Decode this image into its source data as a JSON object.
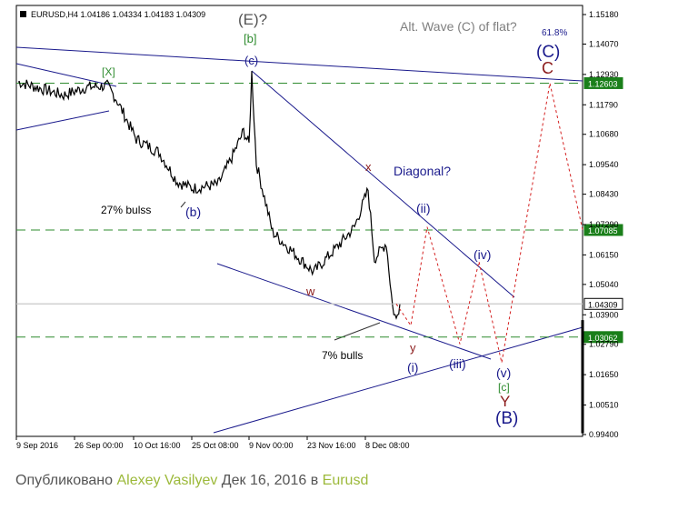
{
  "chart_data": {
    "type": "line",
    "title": "EURUSD,H4  1.04186 1.04334 1.04183 1.04309",
    "subtitle": "Alt. Wave (C) of flat?",
    "y_ticks": [
      "1.15180",
      "1.14070",
      "1.12930",
      "1.11790",
      "1.10680",
      "1.09540",
      "1.08430",
      "1.07290",
      "1.06150",
      "1.05040",
      "1.03900",
      "1.02790",
      "1.01650",
      "1.00510",
      "0.99400"
    ],
    "x_ticks": [
      "9 Sep 2016",
      "26 Sep 00:00",
      "10 Oct 16:00",
      "25 Oct 08:00",
      "9 Nov 00:00",
      "23 Nov 16:00",
      "8 Dec 08:00"
    ],
    "ylim": [
      0.994,
      1.1518
    ],
    "price_levels": [
      {
        "value": 1.12603,
        "label": "1.12603",
        "style": "dashed",
        "color": "#2e8b2e"
      },
      {
        "value": 1.07085,
        "label": "1.07085",
        "style": "dashed",
        "color": "#2e8b2e"
      },
      {
        "value": 1.04309,
        "label": "1.04309",
        "style": "solid",
        "color": "#c8c8c8"
      },
      {
        "value": 1.03062,
        "label": "1.03062",
        "style": "dashed",
        "color": "#2e8b2e"
      }
    ],
    "price_series": [
      {
        "t": "9 Sep 2016",
        "v": 1.1265
      },
      {
        "t": "16 Sep",
        "v": 1.1215
      },
      {
        "t": "20 Sep",
        "v": 1.1245
      },
      {
        "t": "26 Sep 00:00",
        "v": 1.125
      },
      {
        "t": "28 Sep",
        "v": 1.12
      },
      {
        "t": "6 Oct",
        "v": 1.105
      },
      {
        "t": "10 Oct 16:00",
        "v": 1.1
      },
      {
        "t": "18 Oct",
        "v": 1.089
      },
      {
        "t": "20 Oct",
        "v": 1.0865
      },
      {
        "t": "25 Oct 08:00",
        "v": 1.088
      },
      {
        "t": "28 Oct",
        "v": 1.098
      },
      {
        "t": "1 Nov",
        "v": 1.108
      },
      {
        "t": "8 Nov",
        "v": 1.103
      },
      {
        "t": "9 Nov 00:00",
        "v": 1.1298
      },
      {
        "t": "10 Nov",
        "v": 1.096
      },
      {
        "t": "16 Nov",
        "v": 1.07
      },
      {
        "t": "23 Nov 16:00",
        "v": 1.055
      },
      {
        "t": "1 Dec",
        "v": 1.066
      },
      {
        "t": "6 Dec",
        "v": 1.072
      },
      {
        "t": "8 Dec 08:00",
        "v": 1.086
      },
      {
        "t": "9 Dec",
        "v": 1.06
      },
      {
        "t": "13 Dec",
        "v": 1.066
      },
      {
        "t": "15 Dec",
        "v": 1.042
      },
      {
        "t": "16 Dec",
        "v": 1.037
      },
      {
        "t": "16 Dec",
        "v": 1.04309
      }
    ],
    "projection_path": [
      {
        "label": "(i)",
        "v": 1.035
      },
      {
        "label": "(ii)",
        "v": 1.072
      },
      {
        "label": "(iii)",
        "v": 1.028
      },
      {
        "label": "(iv)",
        "v": 1.059
      },
      {
        "label": "(v)",
        "v": 1.021
      },
      {
        "label": "(C)",
        "v": 1.126
      },
      {
        "label": "",
        "v": 1.071
      }
    ],
    "wave_labels": [
      "(E)?",
      "[b]",
      "(c)",
      "[X]",
      "(b)",
      "x",
      "w",
      "y",
      "(i)",
      "(ii)",
      "(iii)",
      "(iv)",
      "(v)",
      "[c]",
      "Y",
      "(B)",
      "C",
      "(C)",
      "61.8%"
    ],
    "annotations": [
      "27% bulss",
      "7% bulls",
      "Diagonal?"
    ]
  },
  "footer": {
    "prefix": "Опубликовано ",
    "author": "Alexey Vasilyev",
    "date": " Дек 16, 2016 в ",
    "symbol": "Eurusd"
  }
}
